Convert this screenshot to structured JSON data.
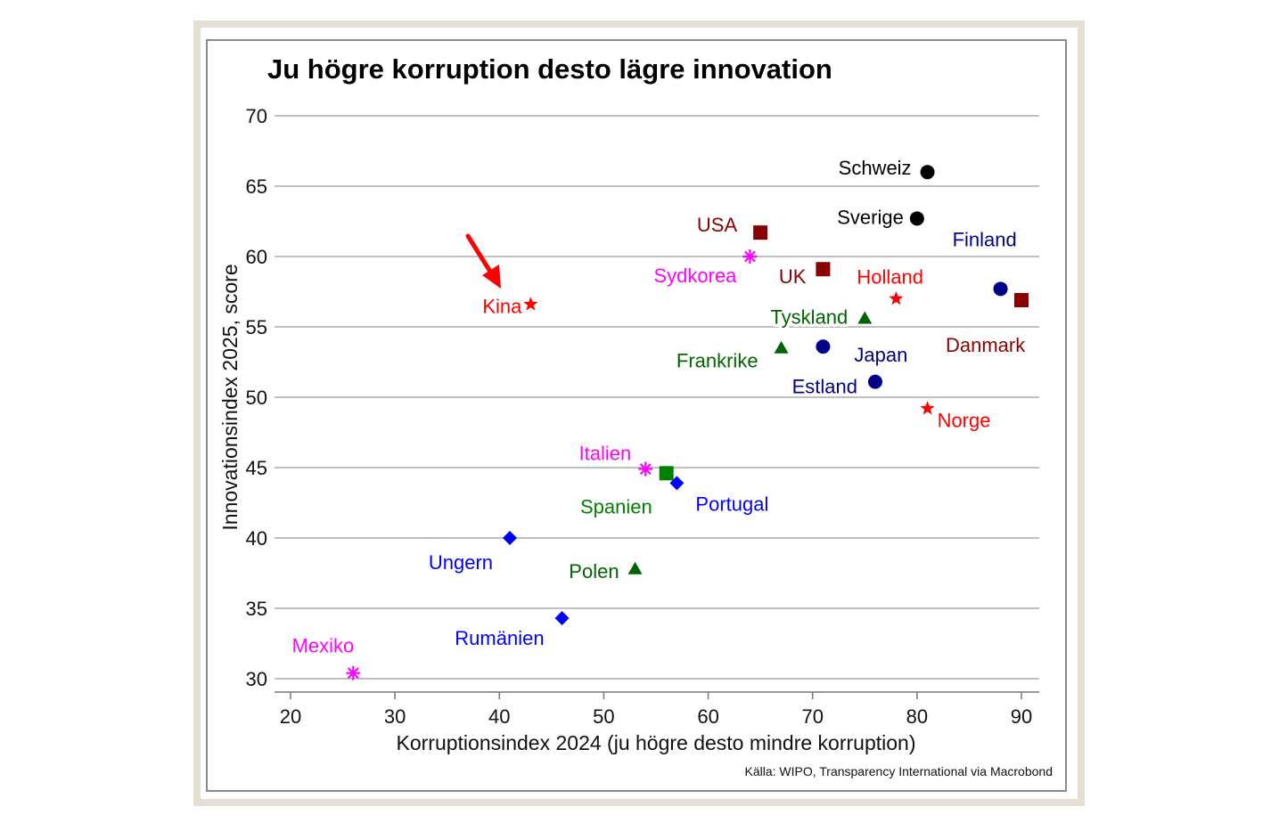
{
  "chart_data": {
    "type": "scatter",
    "title": "Ju högre korruption desto lägre innovation",
    "xlabel": "Korruptionsindex 2024 (ju högre desto mindre korruption)",
    "ylabel": "Innovationsindex 2025, score",
    "source": "Källa: WIPO, Transparency International via Macrobond",
    "xlim": [
      18.5,
      91.5
    ],
    "ylim": [
      29,
      70
    ],
    "xticks": [
      20,
      30,
      40,
      50,
      60,
      70,
      80,
      90
    ],
    "yticks": [
      30,
      35,
      40,
      45,
      50,
      55,
      60,
      65,
      70
    ],
    "grid": "horizontal",
    "annotation": {
      "type": "arrow",
      "target": "Kina",
      "color": "#ff0000"
    },
    "points": [
      {
        "name": "Schweiz",
        "x": 81,
        "y": 66.0,
        "marker": "circle",
        "color": "#000000",
        "label_color": "#000000"
      },
      {
        "name": "Sverige",
        "x": 80,
        "y": 62.7,
        "marker": "circle",
        "color": "#000000",
        "label_color": "#000000"
      },
      {
        "name": "USA",
        "x": 65,
        "y": 61.7,
        "marker": "square",
        "color": "#8b0000",
        "label_color": "#8b0000"
      },
      {
        "name": "Finland",
        "x": 88,
        "y": 57.7,
        "marker": "circle",
        "color": "#00008b",
        "label_color": "#00008b"
      },
      {
        "name": "Danmark",
        "x": 90,
        "y": 56.9,
        "marker": "square",
        "color": "#8b0000",
        "label_color": "#8b0000"
      },
      {
        "name": "UK",
        "x": 71,
        "y": 59.1,
        "marker": "square",
        "color": "#8b0000",
        "label_color": "#8b0000"
      },
      {
        "name": "Holland",
        "x": 78,
        "y": 57.0,
        "marker": "star",
        "color": "#ff0000",
        "label_color": "#ff0000"
      },
      {
        "name": "Sydkorea",
        "x": 64,
        "y": 60.0,
        "marker": "asterisk",
        "color": "#ff00ff",
        "label_color": "#ff00ff"
      },
      {
        "name": "Kina",
        "x": 43,
        "y": 56.6,
        "marker": "star",
        "color": "#ff0000",
        "label_color": "#ff0000"
      },
      {
        "name": "Tyskland",
        "x": 75,
        "y": 55.6,
        "marker": "triangle",
        "color": "#006400",
        "label_color": "#006400"
      },
      {
        "name": "Frankrike",
        "x": 67,
        "y": 53.5,
        "marker": "triangle",
        "color": "#006400",
        "label_color": "#006400"
      },
      {
        "name": "Japan",
        "x": 71,
        "y": 53.6,
        "marker": "circle",
        "color": "#00008b",
        "label_color": "#00008b"
      },
      {
        "name": "Estland",
        "x": 76,
        "y": 51.1,
        "marker": "circle",
        "color": "#00008b",
        "label_color": "#00008b"
      },
      {
        "name": "Norge",
        "x": 81,
        "y": 49.2,
        "marker": "star",
        "color": "#ff0000",
        "label_color": "#ff0000"
      },
      {
        "name": "Italien",
        "x": 54,
        "y": 44.9,
        "marker": "asterisk",
        "color": "#ff00ff",
        "label_color": "#ff00ff"
      },
      {
        "name": "Spanien",
        "x": 56,
        "y": 44.6,
        "marker": "square",
        "color": "#008000",
        "label_color": "#008000"
      },
      {
        "name": "Portugal",
        "x": 57,
        "y": 43.9,
        "marker": "diamond",
        "color": "#0000ff",
        "label_color": "#0000ff"
      },
      {
        "name": "Ungern",
        "x": 41,
        "y": 40.0,
        "marker": "diamond",
        "color": "#0000ff",
        "label_color": "#0000ff"
      },
      {
        "name": "Polen",
        "x": 53,
        "y": 37.8,
        "marker": "triangle",
        "color": "#006400",
        "label_color": "#006400"
      },
      {
        "name": "Rumänien",
        "x": 46,
        "y": 34.3,
        "marker": "diamond",
        "color": "#0000ff",
        "label_color": "#0000ff"
      },
      {
        "name": "Mexiko",
        "x": 26,
        "y": 30.4,
        "marker": "asterisk",
        "color": "#ff00ff",
        "label_color": "#ff00ff"
      }
    ]
  }
}
